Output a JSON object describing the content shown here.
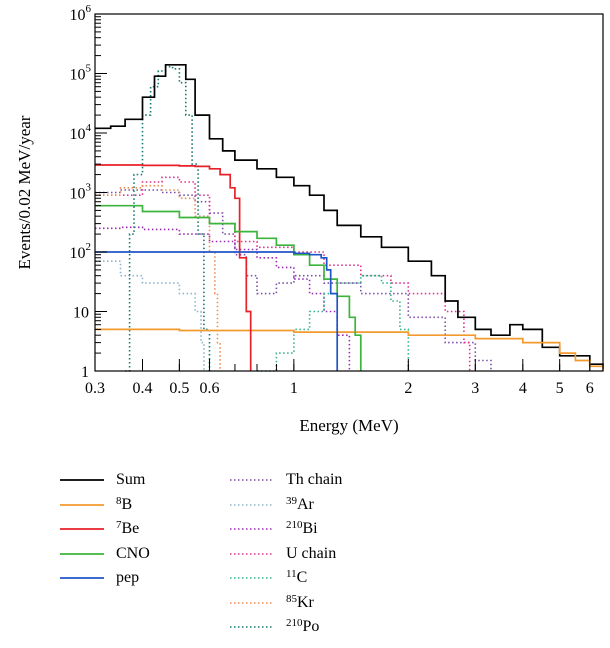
{
  "chart_data": {
    "type": "line",
    "title": "",
    "xlabel": "Energy (MeV)",
    "ylabel": "Events/0.02 MeV/year",
    "xscale": "log",
    "yscale": "log",
    "xlim": [
      0.3,
      6.5
    ],
    "ylim": [
      1,
      1000000
    ],
    "grid": false,
    "legend_position": "below",
    "x_ticks": [
      {
        "value": 0.3,
        "label": "0.3"
      },
      {
        "value": 0.4,
        "label": "0.4"
      },
      {
        "value": 0.5,
        "label": "0.5"
      },
      {
        "value": 0.6,
        "label": "0.6"
      },
      {
        "value": 1,
        "label": "1"
      },
      {
        "value": 2,
        "label": "2"
      },
      {
        "value": 3,
        "label": "3"
      },
      {
        "value": 4,
        "label": "4"
      },
      {
        "value": 5,
        "label": "5"
      },
      {
        "value": 6,
        "label": "6"
      }
    ],
    "y_ticks": [
      {
        "value": 1,
        "label": "1",
        "base": "",
        "exp": ""
      },
      {
        "value": 10,
        "label": "10",
        "base": "",
        "exp": ""
      },
      {
        "value": 100,
        "label": "",
        "base": "10",
        "exp": "2"
      },
      {
        "value": 1000,
        "label": "",
        "base": "10",
        "exp": "3"
      },
      {
        "value": 10000,
        "label": "",
        "base": "10",
        "exp": "4"
      },
      {
        "value": 100000,
        "label": "",
        "base": "10",
        "exp": "5"
      },
      {
        "value": 1000000,
        "label": "",
        "base": "10",
        "exp": "6"
      }
    ],
    "series": [
      {
        "key": "sum",
        "sup": "",
        "name": "Sum",
        "color": "#000000",
        "style": "solid",
        "points": [
          [
            0.3,
            12000
          ],
          [
            0.33,
            13000
          ],
          [
            0.36,
            17000
          ],
          [
            0.4,
            40000
          ],
          [
            0.43,
            90000
          ],
          [
            0.46,
            140000
          ],
          [
            0.49,
            140000
          ],
          [
            0.52,
            80000
          ],
          [
            0.55,
            20000
          ],
          [
            0.6,
            8000
          ],
          [
            0.65,
            5000
          ],
          [
            0.7,
            3500
          ],
          [
            0.8,
            2500
          ],
          [
            0.9,
            1800
          ],
          [
            1.0,
            1300
          ],
          [
            1.1,
            900
          ],
          [
            1.2,
            500
          ],
          [
            1.3,
            280
          ],
          [
            1.5,
            180
          ],
          [
            1.7,
            120
          ],
          [
            2.0,
            70
          ],
          [
            2.3,
            40
          ],
          [
            2.5,
            15
          ],
          [
            2.7,
            8
          ],
          [
            3.0,
            5
          ],
          [
            3.3,
            4
          ],
          [
            3.7,
            6
          ],
          [
            4.0,
            5
          ],
          [
            4.5,
            2.5
          ],
          [
            5.0,
            1.8
          ],
          [
            6.0,
            1.3
          ],
          [
            6.5,
            1.1
          ]
        ]
      },
      {
        "key": "b8",
        "sup": "8",
        "name": "B",
        "color": "#f39a2e",
        "style": "solid",
        "points": [
          [
            0.3,
            5
          ],
          [
            0.5,
            4.8
          ],
          [
            1.0,
            4.5
          ],
          [
            2.0,
            4.0
          ],
          [
            3.0,
            3.5
          ],
          [
            4.0,
            3.0
          ],
          [
            5.0,
            2.0
          ],
          [
            5.5,
            1.5
          ],
          [
            6.0,
            1.2
          ],
          [
            6.5,
            1.0
          ]
        ]
      },
      {
        "key": "be7",
        "sup": "7",
        "name": "Be",
        "color": "#e8202a",
        "style": "solid",
        "points": [
          [
            0.3,
            2900
          ],
          [
            0.4,
            2850
          ],
          [
            0.5,
            2800
          ],
          [
            0.55,
            2750
          ],
          [
            0.6,
            2500
          ],
          [
            0.64,
            2000
          ],
          [
            0.68,
            1200
          ],
          [
            0.7,
            800
          ],
          [
            0.72,
            600
          ],
          [
            0.72,
            80
          ],
          [
            0.75,
            60
          ],
          [
            0.75,
            10
          ],
          [
            0.77,
            5
          ],
          [
            0.77,
            1
          ]
        ]
      },
      {
        "key": "cno",
        "sup": "",
        "name": "CNO",
        "color": "#3cb53c",
        "style": "solid",
        "points": [
          [
            0.3,
            600
          ],
          [
            0.4,
            480
          ],
          [
            0.5,
            380
          ],
          [
            0.6,
            300
          ],
          [
            0.7,
            220
          ],
          [
            0.8,
            170
          ],
          [
            0.9,
            130
          ],
          [
            1.0,
            90
          ],
          [
            1.1,
            60
          ],
          [
            1.2,
            35
          ],
          [
            1.3,
            18
          ],
          [
            1.4,
            8
          ],
          [
            1.45,
            4
          ],
          [
            1.5,
            1.5
          ],
          [
            1.5,
            1
          ]
        ]
      },
      {
        "key": "pep",
        "sup": "",
        "name": "pep",
        "color": "#2055c8",
        "style": "solid",
        "points": [
          [
            0.3,
            100
          ],
          [
            0.5,
            100
          ],
          [
            0.8,
            100
          ],
          [
            1.0,
            95
          ],
          [
            1.1,
            90
          ],
          [
            1.18,
            80
          ],
          [
            1.22,
            50
          ],
          [
            1.25,
            20
          ],
          [
            1.3,
            5
          ],
          [
            1.3,
            1
          ]
        ]
      },
      {
        "key": "th",
        "sup": "",
        "name": "Th chain",
        "color": "#7a4fa8",
        "style": "dotted",
        "points": [
          [
            0.3,
            1000
          ],
          [
            0.35,
            1100
          ],
          [
            0.4,
            1100
          ],
          [
            0.45,
            1000
          ],
          [
            0.5,
            900
          ],
          [
            0.55,
            700
          ],
          [
            0.6,
            450
          ],
          [
            0.65,
            200
          ],
          [
            0.7,
            90
          ],
          [
            0.75,
            40
          ],
          [
            0.8,
            20
          ],
          [
            0.9,
            30
          ],
          [
            1.0,
            40
          ],
          [
            1.2,
            30
          ],
          [
            1.5,
            20
          ],
          [
            2.0,
            8
          ],
          [
            2.5,
            3
          ],
          [
            3.0,
            1.5
          ],
          [
            3.3,
            1
          ]
        ]
      },
      {
        "key": "ar39",
        "sup": "39",
        "name": "Ar",
        "color": "#8bb5cc",
        "style": "dotted",
        "points": [
          [
            0.3,
            70
          ],
          [
            0.35,
            40
          ],
          [
            0.4,
            30
          ],
          [
            0.5,
            20
          ],
          [
            0.55,
            10
          ],
          [
            0.57,
            3
          ],
          [
            0.58,
            1
          ]
        ]
      },
      {
        "key": "bi210",
        "sup": "210",
        "name": "Bi",
        "color": "#9a2bb5",
        "style": "dotted",
        "points": [
          [
            0.3,
            250
          ],
          [
            0.35,
            260
          ],
          [
            0.4,
            240
          ],
          [
            0.5,
            200
          ],
          [
            0.6,
            150
          ],
          [
            0.7,
            110
          ],
          [
            0.8,
            80
          ],
          [
            0.9,
            55
          ],
          [
            1.0,
            35
          ],
          [
            1.1,
            20
          ],
          [
            1.2,
            10
          ],
          [
            1.3,
            4
          ],
          [
            1.4,
            1
          ]
        ]
      },
      {
        "key": "u",
        "sup": "",
        "name": "U chain",
        "color": "#e0308c",
        "style": "dotted",
        "points": [
          [
            0.3,
            900
          ],
          [
            0.4,
            1500
          ],
          [
            0.45,
            1800
          ],
          [
            0.5,
            1500
          ],
          [
            0.55,
            900
          ],
          [
            0.6,
            300
          ],
          [
            0.7,
            150
          ],
          [
            0.8,
            120
          ],
          [
            1.0,
            100
          ],
          [
            1.2,
            60
          ],
          [
            1.5,
            40
          ],
          [
            1.8,
            30
          ],
          [
            2.0,
            20
          ],
          [
            2.5,
            10
          ],
          [
            2.8,
            3
          ],
          [
            2.9,
            1
          ]
        ]
      },
      {
        "key": "c11",
        "sup": "11",
        "name": "C",
        "color": "#35b58a",
        "style": "dotted",
        "points": [
          [
            0.8,
            1
          ],
          [
            0.9,
            2
          ],
          [
            1.0,
            5
          ],
          [
            1.1,
            10
          ],
          [
            1.2,
            20
          ],
          [
            1.3,
            30
          ],
          [
            1.5,
            40
          ],
          [
            1.7,
            30
          ],
          [
            1.8,
            15
          ],
          [
            1.9,
            5
          ],
          [
            2.0,
            1
          ]
        ]
      },
      {
        "key": "kr85",
        "sup": "85",
        "name": "Kr",
        "color": "#f08a50",
        "style": "dotted",
        "points": [
          [
            0.3,
            900
          ],
          [
            0.35,
            1200
          ],
          [
            0.4,
            1300
          ],
          [
            0.45,
            1100
          ],
          [
            0.5,
            800
          ],
          [
            0.55,
            400
          ],
          [
            0.6,
            100
          ],
          [
            0.62,
            20
          ],
          [
            0.63,
            3
          ],
          [
            0.64,
            1
          ]
        ]
      },
      {
        "key": "po210",
        "sup": "210",
        "name": "Po",
        "color": "#157a6e",
        "style": "dotted",
        "points": [
          [
            0.36,
            1
          ],
          [
            0.37,
            200
          ],
          [
            0.38,
            2000
          ],
          [
            0.4,
            20000
          ],
          [
            0.42,
            60000
          ],
          [
            0.44,
            110000
          ],
          [
            0.46,
            130000
          ],
          [
            0.48,
            120000
          ],
          [
            0.5,
            70000
          ],
          [
            0.52,
            20000
          ],
          [
            0.54,
            3000
          ],
          [
            0.56,
            200
          ],
          [
            0.58,
            5
          ],
          [
            0.6,
            1
          ]
        ]
      }
    ]
  }
}
